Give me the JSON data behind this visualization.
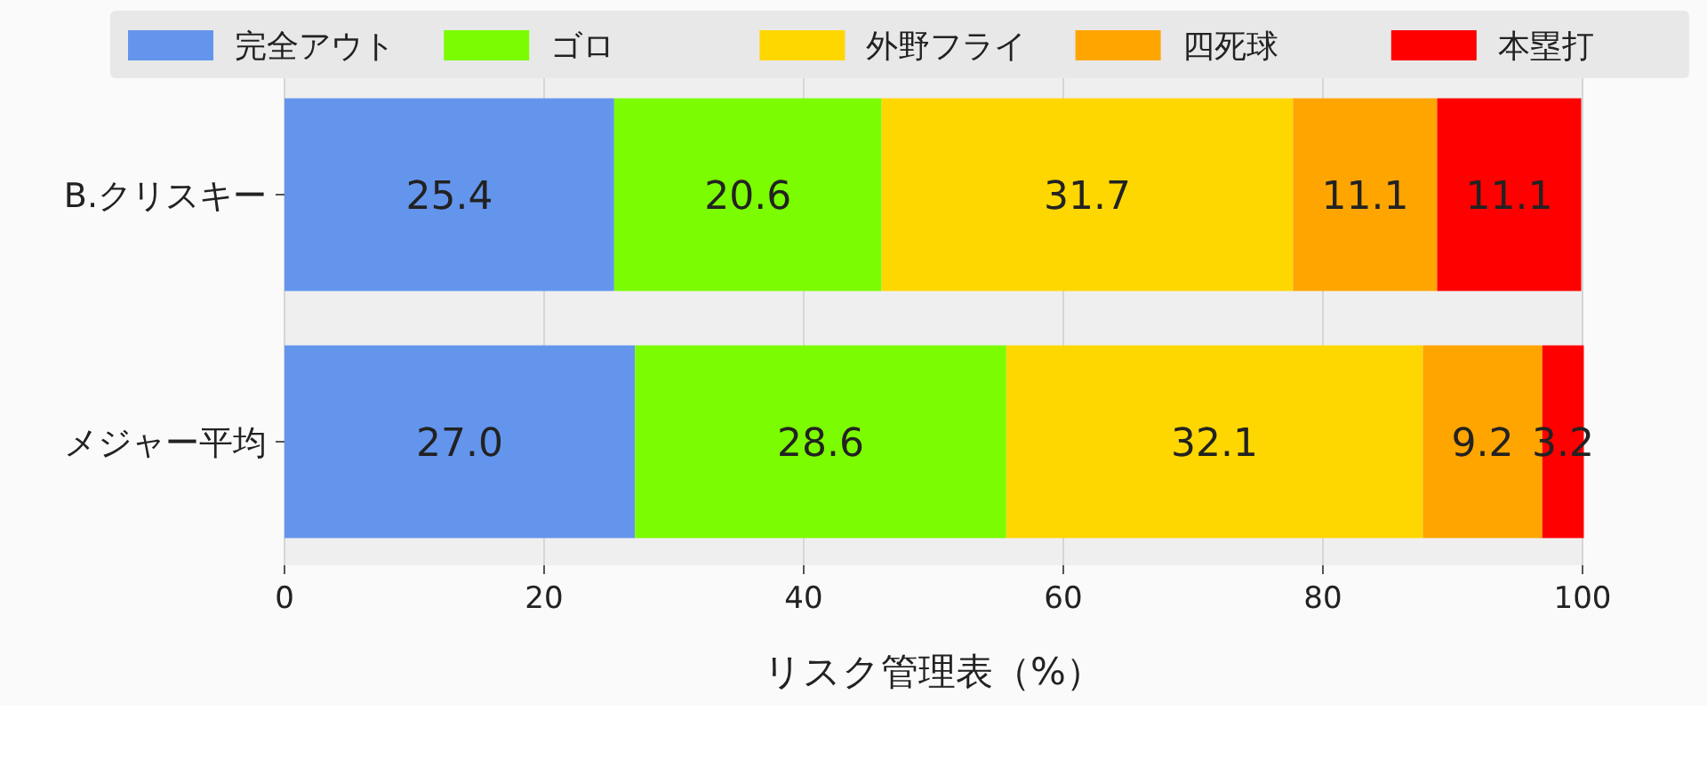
{
  "chart_data": {
    "type": "bar",
    "orientation": "horizontal",
    "stacked": true,
    "categories": [
      "B.クリスキー",
      "メジャー平均"
    ],
    "series": [
      {
        "name": "完全アウト",
        "color": "#6495ed",
        "values": [
          25.4,
          27.0
        ],
        "value_labels": [
          "25.4",
          "27.0"
        ]
      },
      {
        "name": "ゴロ",
        "color": "#7cfc00",
        "values": [
          20.6,
          28.6
        ],
        "value_labels": [
          "20.6",
          "28.6"
        ]
      },
      {
        "name": "外野フライ",
        "color": "#ffd700",
        "values": [
          31.7,
          32.1
        ],
        "value_labels": [
          "31.7",
          "32.1"
        ]
      },
      {
        "name": "四死球",
        "color": "#ffa500",
        "values": [
          11.1,
          9.2
        ],
        "value_labels": [
          "11.1",
          "9.2"
        ]
      },
      {
        "name": "本塁打",
        "color": "#ff0000",
        "values": [
          11.1,
          3.2
        ],
        "value_labels": [
          "11.1",
          "3.2"
        ]
      }
    ],
    "xlim": [
      0,
      100
    ],
    "xticks": [
      0,
      20,
      40,
      60,
      80,
      100
    ],
    "xlabel": "リスク管理表（%）",
    "grid": "x",
    "legend": "top"
  }
}
